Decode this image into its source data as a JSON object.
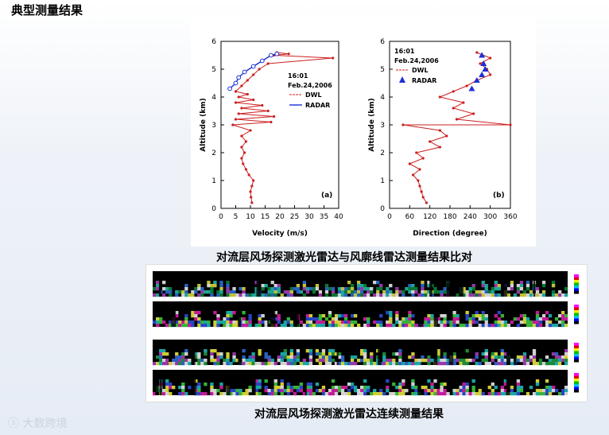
{
  "page": {
    "title": "典型测量结果",
    "caption_top": "对流层风场探测激光雷达与风廓线雷达测量结果比对",
    "caption_bottom": "对流层风场探测激光雷达连续测量结果",
    "watermark": "大数跨境"
  },
  "colors": {
    "dwl": "#cc2020",
    "radar": "#1a2fd6"
  },
  "chart_data": [
    {
      "type": "line",
      "panel_label": "(a)",
      "annotation_time": "16:01",
      "annotation_date": "Feb.24,2006",
      "xlabel": "Velocity (m/s)",
      "ylabel": "Altitude (km)",
      "xlim": [
        0,
        40
      ],
      "ylim": [
        0,
        6
      ],
      "xticks": [
        0,
        5,
        10,
        15,
        20,
        25,
        30,
        35,
        40
      ],
      "yticks": [
        0,
        1,
        2,
        3,
        4,
        5,
        6
      ],
      "series": [
        {
          "name": "DWL",
          "points": [
            [
              10.5,
              0.2
            ],
            [
              10.2,
              0.4
            ],
            [
              10,
              0.6
            ],
            [
              10.5,
              0.8
            ],
            [
              11,
              1.0
            ],
            [
              9.5,
              1.2
            ],
            [
              8.5,
              1.4
            ],
            [
              7.5,
              1.6
            ],
            [
              7,
              1.8
            ],
            [
              8,
              2.0
            ],
            [
              7,
              2.2
            ],
            [
              8.5,
              2.4
            ],
            [
              7,
              2.6
            ],
            [
              10,
              2.8
            ],
            [
              4,
              3.0
            ],
            [
              17,
              3.1
            ],
            [
              5,
              3.2
            ],
            [
              18,
              3.3
            ],
            [
              6,
              3.4
            ],
            [
              16,
              3.5
            ],
            [
              7,
              3.6
            ],
            [
              14,
              3.7
            ],
            [
              5,
              3.8
            ],
            [
              11,
              3.9
            ],
            [
              6,
              4.0
            ],
            [
              9,
              4.1
            ],
            [
              5,
              4.2
            ],
            [
              7,
              4.4
            ],
            [
              9,
              4.6
            ],
            [
              11,
              4.8
            ],
            [
              13,
              5.0
            ],
            [
              16,
              5.2
            ],
            [
              38,
              5.4
            ],
            [
              18,
              5.5
            ],
            [
              23,
              5.55
            ],
            [
              19,
              5.6
            ]
          ]
        },
        {
          "name": "RADAR",
          "points": [
            [
              3,
              4.3
            ],
            [
              5,
              4.5
            ],
            [
              6,
              4.7
            ],
            [
              8,
              4.9
            ],
            [
              11,
              5.1
            ],
            [
              14,
              5.3
            ],
            [
              17,
              5.5
            ],
            [
              19,
              5.55
            ]
          ]
        }
      ]
    },
    {
      "type": "line",
      "panel_label": "(b)",
      "annotation_time": "16:01",
      "annotation_date": "Feb.24,2006",
      "xlabel": "Direction (degree)",
      "ylabel": "Altitude (km)",
      "xlim": [
        0,
        360
      ],
      "ylim": [
        0,
        6
      ],
      "xticks": [
        0,
        60,
        120,
        180,
        240,
        300,
        360
      ],
      "yticks": [
        0,
        1,
        2,
        3,
        4,
        5,
        6
      ],
      "series": [
        {
          "name": "DWL",
          "points": [
            [
              110,
              0.2
            ],
            [
              100,
              0.4
            ],
            [
              95,
              0.6
            ],
            [
              90,
              0.8
            ],
            [
              85,
              1.0
            ],
            [
              70,
              1.2
            ],
            [
              90,
              1.4
            ],
            [
              60,
              1.6
            ],
            [
              100,
              1.8
            ],
            [
              80,
              2.0
            ],
            [
              150,
              2.2
            ],
            [
              120,
              2.4
            ],
            [
              170,
              2.6
            ],
            [
              150,
              2.8
            ],
            [
              40,
              3.0
            ],
            [
              360,
              3.0
            ],
            [
              200,
              3.2
            ],
            [
              250,
              3.4
            ],
            [
              190,
              3.6
            ],
            [
              220,
              3.8
            ],
            [
              150,
              4.0
            ],
            [
              190,
              4.2
            ],
            [
              230,
              4.4
            ],
            [
              260,
              4.6
            ],
            [
              300,
              4.8
            ],
            [
              290,
              5.0
            ],
            [
              270,
              5.2
            ],
            [
              300,
              5.4
            ],
            [
              260,
              5.6
            ]
          ]
        },
        {
          "name": "RADAR",
          "points": [
            [
              245,
              4.3
            ],
            [
              260,
              4.6
            ],
            [
              275,
              4.8
            ],
            [
              285,
              5.0
            ],
            [
              280,
              5.2
            ],
            [
              275,
              5.5
            ]
          ]
        }
      ]
    }
  ]
}
